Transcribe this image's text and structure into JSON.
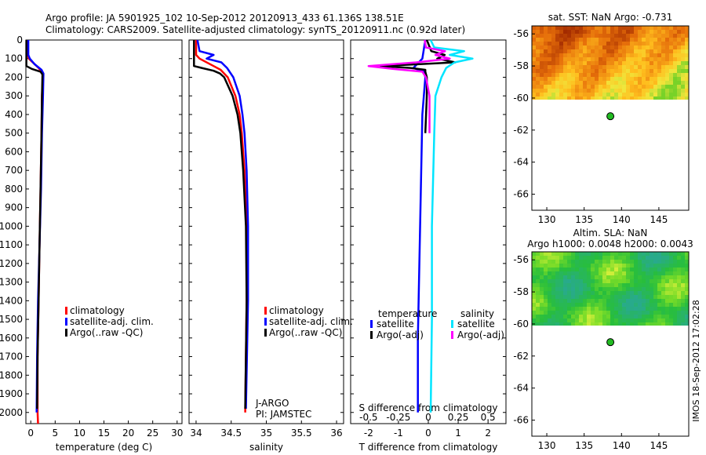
{
  "header": {
    "line1": "Argo profile: JA 5901925_102 10-Sep-2012 20120913_433 61.136S 138.51E",
    "line2": "Climatology: CARS2009. Satellite-adjusted climatology: synTS_20120911.nc (0.92d later)"
  },
  "side_label": "IMOS 18-Sep-2012 17:02:28",
  "colors": {
    "red": "#ff0000",
    "blue": "#0000ff",
    "black": "#000000",
    "cyan": "#00e5ff",
    "magenta": "#ff00ff",
    "marker": "#22bb22"
  },
  "chart_data": [
    {
      "type": "line",
      "xlabel": "temperature (deg C)",
      "xlim": [
        -1,
        31
      ],
      "xticks": [
        "0",
        "5",
        "10",
        "15",
        "20",
        "25",
        "30"
      ],
      "ylim": [
        2060,
        0
      ],
      "yticks": [
        "0",
        "100",
        "200",
        "300",
        "400",
        "500",
        "600",
        "700",
        "800",
        "900",
        "1000",
        "1100",
        "1200",
        "1300",
        "1400",
        "1500",
        "1600",
        "1700",
        "1800",
        "1900",
        "2000"
      ],
      "legend": [
        "climatology",
        "satellite-adj. clim.",
        "Argo(..raw -QC)"
      ],
      "series": [
        {
          "name": "climatology",
          "color": "red",
          "depth": [
            0,
            80,
            100,
            150,
            180,
            300,
            500,
            800,
            1100,
            1400,
            1700,
            2000,
            2060
          ],
          "values": [
            -0.6,
            -0.6,
            -0.4,
            1.6,
            2.5,
            2.3,
            2.2,
            2.0,
            1.8,
            1.6,
            1.4,
            1.4,
            1.5
          ]
        },
        {
          "name": "satellite-adj. clim.",
          "color": "blue",
          "depth": [
            0,
            80,
            100,
            130,
            160,
            180,
            300,
            500,
            800,
            1100,
            1400,
            1700,
            2000
          ],
          "values": [
            -0.5,
            -0.5,
            -0.2,
            0.8,
            2.2,
            2.6,
            2.5,
            2.3,
            2.1,
            1.8,
            1.5,
            1.3,
            1.2
          ]
        },
        {
          "name": "Argo(..raw -QC)",
          "color": "black",
          "depth": [
            0,
            140,
            155,
            170,
            185,
            300,
            500,
            800,
            1100,
            1400,
            1700,
            1980
          ],
          "values": [
            -0.9,
            -0.9,
            0.2,
            2.0,
            2.4,
            2.3,
            2.2,
            2.0,
            1.8,
            1.6,
            1.4,
            1.3
          ]
        }
      ]
    },
    {
      "type": "line",
      "xlabel": "salinity",
      "xlim": [
        33.9,
        36.1
      ],
      "xticks": [
        "34",
        "34.5",
        "35",
        "35.5",
        "36"
      ],
      "ylim": [
        2060,
        0
      ],
      "legend": [
        "climatology",
        "satellite-adj. clim.",
        "Argo(..raw -QC)"
      ],
      "series": [
        {
          "name": "climatology",
          "color": "red",
          "depth": [
            0,
            80,
            100,
            140,
            160,
            200,
            300,
            400,
            500,
            700,
            1000,
            1400,
            2000
          ],
          "values": [
            34.0,
            34.0,
            34.05,
            34.25,
            34.35,
            34.45,
            34.56,
            34.62,
            34.65,
            34.69,
            34.72,
            34.72,
            34.7
          ]
        },
        {
          "name": "satellite-adj. clim.",
          "color": "blue",
          "depth": [
            0,
            60,
            80,
            100,
            120,
            150,
            200,
            300,
            400,
            500,
            700,
            1000,
            1400,
            1980
          ],
          "values": [
            34.02,
            34.05,
            34.25,
            34.15,
            34.36,
            34.44,
            34.53,
            34.62,
            34.66,
            34.69,
            34.72,
            34.74,
            34.74,
            34.71
          ]
        },
        {
          "name": "Argo(..raw -QC)",
          "color": "black",
          "depth": [
            0,
            140,
            150,
            165,
            180,
            200,
            300,
            400,
            500,
            700,
            1000,
            1400,
            1980
          ],
          "values": [
            33.97,
            33.97,
            34.08,
            34.25,
            34.34,
            34.4,
            34.52,
            34.59,
            34.63,
            34.67,
            34.71,
            34.72,
            34.7
          ]
        }
      ],
      "annotations": [
        "J-ARGO",
        "PI: JAMSTEC"
      ]
    },
    {
      "type": "line",
      "xlabel": "T difference from climatology",
      "xlabel_top": "S difference from climatology",
      "xlim": [
        -2.6,
        2.6
      ],
      "xticks": [
        "-2",
        "-1",
        "0",
        "1",
        "2"
      ],
      "xticks_top": [
        "-0.5",
        "-0.25",
        "0",
        "0.25",
        "0.5"
      ],
      "ylim": [
        2060,
        0
      ],
      "legend_title_left": "temperature",
      "legend_title_right": "salinity",
      "legend": [
        "satellite",
        "Argo(-adj)",
        "satellite",
        "Argo(-adj)"
      ],
      "series": [
        {
          "name": "temperature satellite",
          "color": "blue",
          "depth": [
            0,
            100,
            150,
            170,
            200,
            400,
            800,
            1200,
            1600,
            2000
          ],
          "values": [
            -0.1,
            -0.2,
            -0.5,
            -0.15,
            -0.1,
            -0.2,
            -0.25,
            -0.3,
            -0.35,
            -0.35
          ]
        },
        {
          "name": "temperature Argo(-adj)",
          "color": "black",
          "depth": [
            0,
            60,
            80,
            100,
            120,
            140,
            150,
            160,
            170,
            200,
            300,
            500
          ],
          "values": [
            -0.05,
            0.1,
            0.55,
            0.3,
            0.9,
            -1.6,
            -0.6,
            -0.1,
            -0.1,
            -0.05,
            -0.05,
            -0.1
          ]
        },
        {
          "name": "salinity satellite",
          "color": "cyan",
          "depth": [
            0,
            40,
            60,
            80,
            100,
            120,
            150,
            200,
            300,
            500,
            1000,
            1500,
            2000
          ],
          "values": [
            0.02,
            0.05,
            0.3,
            0.18,
            0.37,
            0.22,
            0.15,
            0.11,
            0.06,
            0.05,
            0.03,
            0.03,
            0.02
          ]
        },
        {
          "name": "salinity Argo(-adj)",
          "color": "magenta",
          "depth": [
            0,
            40,
            60,
            80,
            100,
            120,
            140,
            155,
            170,
            200,
            300,
            500
          ],
          "values": [
            -0.03,
            -0.02,
            0.14,
            0.06,
            0.18,
            -0.1,
            -0.5,
            -0.3,
            -0.05,
            -0.02,
            0.01,
            0.01
          ]
        }
      ]
    },
    {
      "type": "heatmap",
      "title": "sat. SST: NaN Argo: -0.731",
      "xlim": [
        128,
        149
      ],
      "ylim": [
        -67,
        -55.5
      ],
      "xticks": [
        "130",
        "135",
        "140",
        "145"
      ],
      "yticks": [
        "-56",
        "-58",
        "-60",
        "-62",
        "-64",
        "-66"
      ],
      "data_lat_range": [
        -60.1,
        -55.3
      ],
      "colormap": "sst",
      "marker": {
        "lon": 138.51,
        "lat": -61.136
      }
    },
    {
      "type": "heatmap",
      "title": "Altim. SLA: NaN",
      "subtitle": "Argo h1000: 0.0048 h2000: 0.0043",
      "xlim": [
        128,
        149
      ],
      "ylim": [
        -67,
        -55.5
      ],
      "xticks": [
        "130",
        "135",
        "140",
        "145"
      ],
      "yticks": [
        "-56",
        "-58",
        "-60",
        "-62",
        "-64",
        "-66"
      ],
      "data_lat_range": [
        -60.1,
        -55.3
      ],
      "colormap": "sla",
      "marker": {
        "lon": 138.51,
        "lat": -61.136
      }
    }
  ]
}
